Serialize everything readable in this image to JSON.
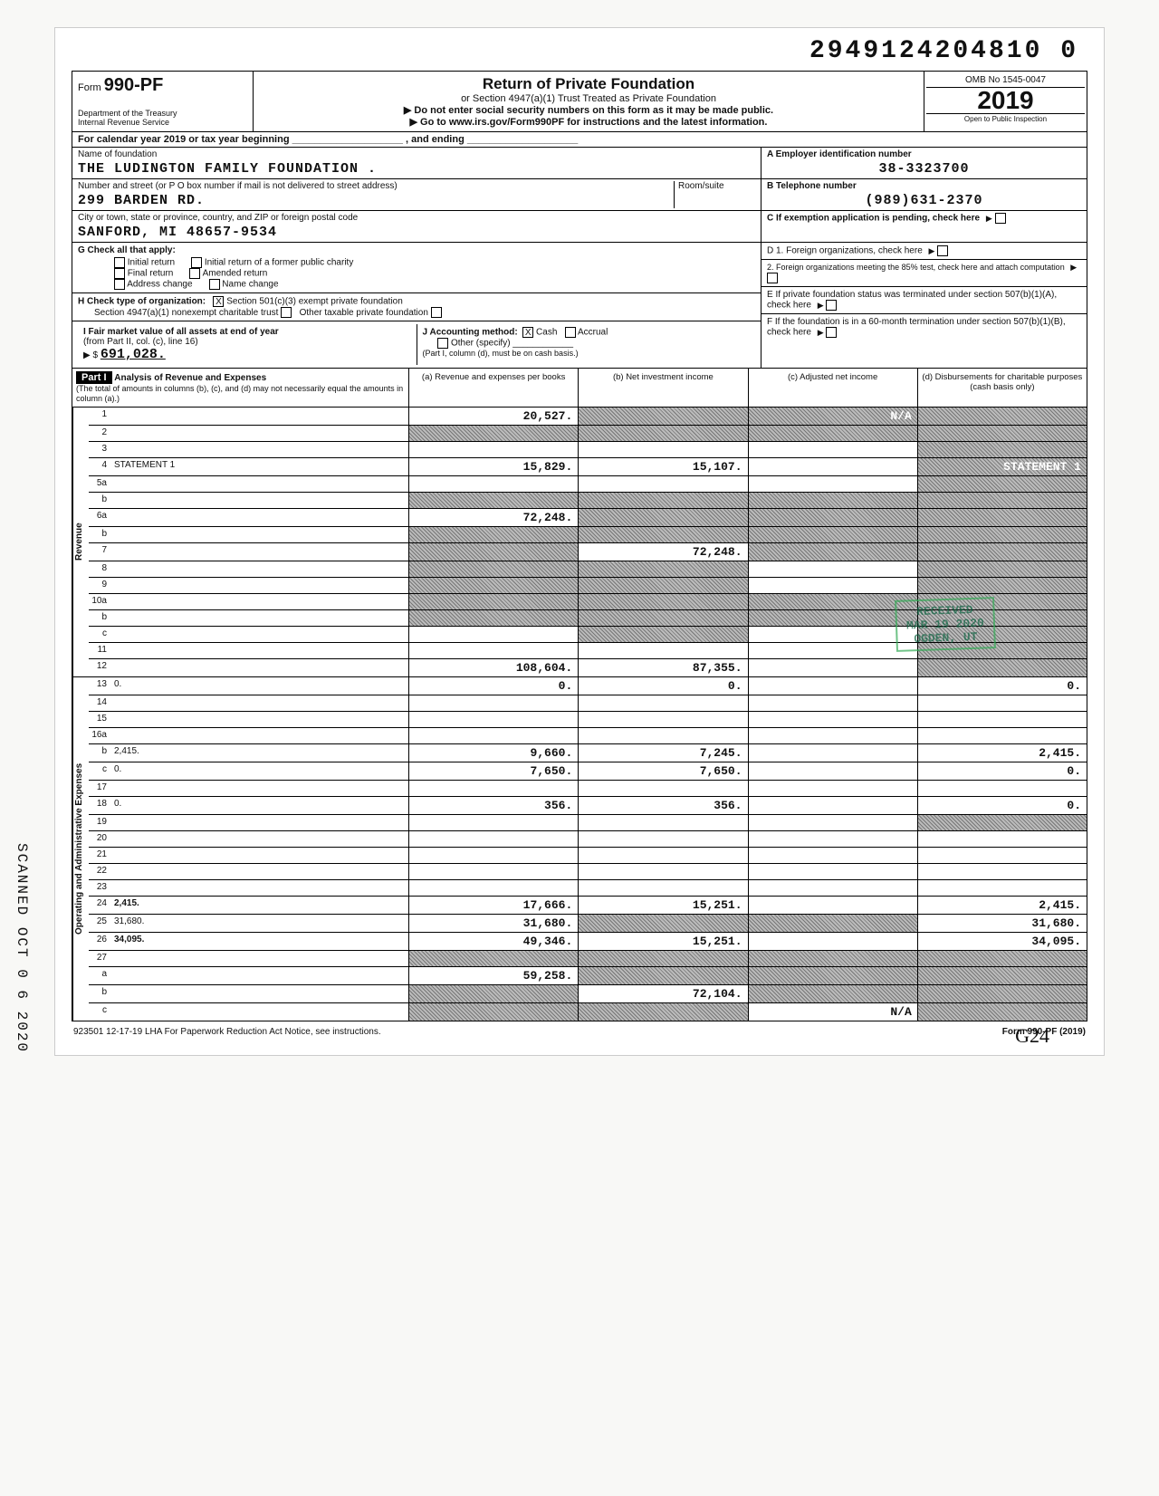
{
  "dln": "2949124204810 0",
  "form": {
    "number": "990-PF",
    "prefix": "Form",
    "dept": "Department of the Treasury\nInternal Revenue Service",
    "title": "Return of Private Foundation",
    "sub1": "or Section 4947(a)(1) Trust Treated as Private Foundation",
    "sub2": "▶ Do not enter social security numbers on this form as it may be made public.",
    "sub3": "▶ Go to www.irs.gov/Form990PF for instructions and the latest information.",
    "omb": "OMB No 1545-0047",
    "year": "2019",
    "open": "Open to Public Inspection"
  },
  "cal_line": "For calendar year 2019 or tax year beginning ____________________ , and ending ____________________",
  "entity": {
    "name_label": "Name of foundation",
    "name": "THE LUDINGTON FAMILY FOUNDATION .",
    "addr_label": "Number and street (or P O box number if mail is not delivered to street address)",
    "addr_room_label": "Room/suite",
    "addr": "299 BARDEN RD.",
    "city_label": "City or town, state or province, country, and ZIP or foreign postal code",
    "city": "SANFORD, MI   48657-9534",
    "A_label": "A  Employer identification number",
    "A_val": "38-3323700",
    "B_label": "B  Telephone number",
    "B_val": "(989)631-2370",
    "C_label": "C  If exemption application is pending, check here"
  },
  "G": {
    "label": "G  Check all that apply:",
    "opts": [
      "Initial return",
      "Final return",
      "Address change",
      "Initial return of a former public charity",
      "Amended return",
      "Name change"
    ]
  },
  "H": {
    "label": "H  Check type of organization:",
    "opt1": "Section 501(c)(3) exempt private foundation",
    "opt2": "Section 4947(a)(1) nonexempt charitable trust",
    "opt3": "Other taxable private foundation",
    "checked": "X"
  },
  "I": {
    "label": "I  Fair market value of all assets at end of year",
    "sub": "(from Part II, col. (c), line 16)",
    "amount": "691,028.",
    "prefix": "▶ $"
  },
  "J": {
    "label": "J  Accounting method:",
    "cash_checked": "X",
    "opts": [
      "Cash",
      "Accrual",
      "Other (specify)"
    ],
    "note": "(Part I, column (d), must be on cash basis.)"
  },
  "right_box": {
    "D1": "D  1. Foreign organizations, check here",
    "D2": "2. Foreign organizations meeting the 85% test, check here and attach computation",
    "E": "E  If private foundation status was terminated under section 507(b)(1)(A), check here",
    "F": "F  If the foundation is in a 60-month termination under section 507(b)(1)(B), check here"
  },
  "part1": {
    "label": "Part I",
    "heading": "Analysis of Revenue and Expenses",
    "sub": "(The total of amounts in columns (b), (c), and (d) may not necessarily equal the amounts in column (a).)",
    "cols": [
      "(a) Revenue and expenses per books",
      "(b) Net investment income",
      "(c) Adjusted net income",
      "(d) Disbursements for charitable purposes (cash basis only)"
    ]
  },
  "side_labels": {
    "rev": "Revenue",
    "exp": "Operating and Administrative Expenses"
  },
  "rows": [
    {
      "n": "1",
      "d": "",
      "a": "20,527.",
      "b": "",
      "c": "N/A",
      "shB": true,
      "shC": true,
      "shD": true
    },
    {
      "n": "2",
      "d": "",
      "a": "",
      "b": "",
      "c": "",
      "shA": true,
      "shB": true,
      "shC": true,
      "shD": true
    },
    {
      "n": "3",
      "d": "",
      "a": "",
      "b": "",
      "c": "",
      "shD": true
    },
    {
      "n": "4",
      "d": "STATEMENT 1",
      "a": "15,829.",
      "b": "15,107.",
      "c": "",
      "shD": true
    },
    {
      "n": "5a",
      "d": "",
      "a": "",
      "b": "",
      "c": "",
      "shD": true
    },
    {
      "n": "b",
      "d": "",
      "a": "",
      "b": "",
      "c": "",
      "shA": true,
      "shB": true,
      "shC": true,
      "shD": true
    },
    {
      "n": "6a",
      "d": "",
      "a": "72,248.",
      "b": "",
      "c": "",
      "shB": true,
      "shC": true,
      "shD": true
    },
    {
      "n": "b",
      "d": "",
      "a": "",
      "b": "",
      "c": "",
      "shA": true,
      "shB": true,
      "shC": true,
      "shD": true
    },
    {
      "n": "7",
      "d": "",
      "a": "",
      "b": "72,248.",
      "c": "",
      "shA": true,
      "shC": true,
      "shD": true
    },
    {
      "n": "8",
      "d": "",
      "a": "",
      "b": "",
      "c": "",
      "shA": true,
      "shB": true,
      "shD": true
    },
    {
      "n": "9",
      "d": "",
      "a": "",
      "b": "",
      "c": "",
      "shA": true,
      "shB": true,
      "shD": true
    },
    {
      "n": "10a",
      "d": "",
      "a": "",
      "b": "",
      "c": "",
      "shA": true,
      "shB": true,
      "shC": true,
      "shD": true
    },
    {
      "n": "b",
      "d": "",
      "a": "",
      "b": "",
      "c": "",
      "shA": true,
      "shB": true,
      "shC": true,
      "shD": true
    },
    {
      "n": "c",
      "d": "",
      "a": "",
      "b": "",
      "c": "",
      "shB": true,
      "shD": true
    },
    {
      "n": "11",
      "d": "",
      "a": "",
      "b": "",
      "c": "",
      "shD": true
    },
    {
      "n": "12",
      "d": "",
      "a": "108,604.",
      "b": "87,355.",
      "c": "",
      "bold": true,
      "shD": true
    }
  ],
  "exp_rows": [
    {
      "n": "13",
      "d": "0.",
      "a": "0.",
      "b": "0.",
      "c": ""
    },
    {
      "n": "14",
      "d": "",
      "a": "",
      "b": "",
      "c": ""
    },
    {
      "n": "15",
      "d": "",
      "a": "",
      "b": "",
      "c": ""
    },
    {
      "n": "16a",
      "d": "",
      "a": "",
      "b": "",
      "c": ""
    },
    {
      "n": "b",
      "d": "2,415.",
      "a": "9,660.",
      "b": "7,245.",
      "c": ""
    },
    {
      "n": "c",
      "d": "0.",
      "a": "7,650.",
      "b": "7,650.",
      "c": ""
    },
    {
      "n": "17",
      "d": "",
      "a": "",
      "b": "",
      "c": ""
    },
    {
      "n": "18",
      "d": "0.",
      "a": "356.",
      "b": "356.",
      "c": ""
    },
    {
      "n": "19",
      "d": "",
      "a": "",
      "b": "",
      "c": "",
      "shD": true
    },
    {
      "n": "20",
      "d": "",
      "a": "",
      "b": "",
      "c": ""
    },
    {
      "n": "21",
      "d": "",
      "a": "",
      "b": "",
      "c": ""
    },
    {
      "n": "22",
      "d": "",
      "a": "",
      "b": "",
      "c": ""
    },
    {
      "n": "23",
      "d": "",
      "a": "",
      "b": "",
      "c": ""
    },
    {
      "n": "24",
      "d": "2,415.",
      "a": "17,666.",
      "b": "15,251.",
      "c": "",
      "bold": true
    },
    {
      "n": "25",
      "d": "31,680.",
      "a": "31,680.",
      "b": "",
      "c": "",
      "shB": true,
      "shC": true
    },
    {
      "n": "26",
      "d": "34,095.",
      "a": "49,346.",
      "b": "15,251.",
      "c": "",
      "bold": true
    },
    {
      "n": "27",
      "d": "",
      "a": "",
      "b": "",
      "c": "",
      "shA": true,
      "shB": true,
      "shC": true,
      "shD": true
    },
    {
      "n": "a",
      "d": "",
      "a": "59,258.",
      "b": "",
      "c": "",
      "shB": true,
      "shC": true,
      "shD": true
    },
    {
      "n": "b",
      "d": "",
      "a": "",
      "b": "72,104.",
      "c": "",
      "shA": true,
      "shC": true,
      "shD": true
    },
    {
      "n": "c",
      "d": "",
      "a": "",
      "b": "",
      "c": "N/A",
      "shA": true,
      "shB": true,
      "shD": true
    }
  ],
  "footer": {
    "left": "923501  12-17-19    LHA  For Paperwork Reduction Act Notice, see instructions.",
    "right": "Form 990-PF (2019)"
  },
  "stamp": {
    "l1": "RECEIVED",
    "l2": "MAR 19 2020",
    "l3": "OGDEN, UT"
  },
  "sidetext": "SCANNED OCT 0 6 2020",
  "hand": "G24"
}
